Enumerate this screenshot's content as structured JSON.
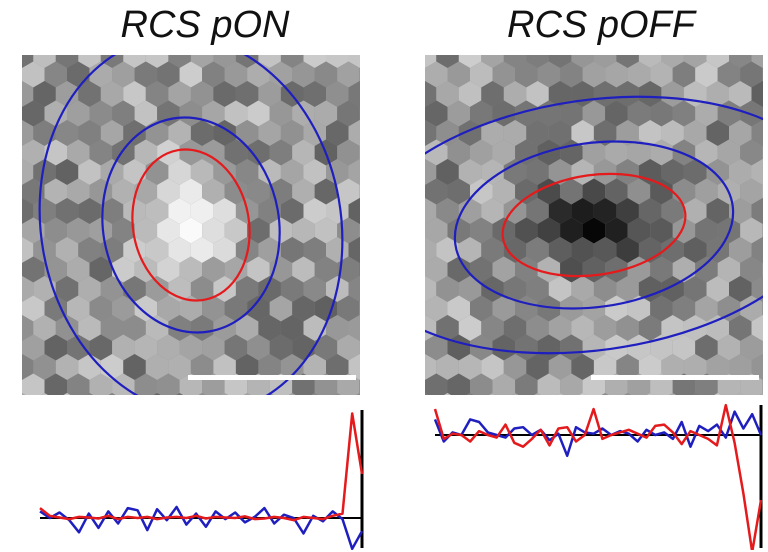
{
  "panels": [
    {
      "title": "RCS pON",
      "center_polarity": "on",
      "red_ellipse": {
        "rx": 58,
        "ry": 76,
        "rot": -10
      },
      "blue_inner": {
        "rx": 88,
        "ry": 108,
        "rot": -10
      },
      "blue_outer": {
        "rx": 150,
        "ry": 190,
        "rot": -10
      }
    },
    {
      "title": "RCS pOFF",
      "center_polarity": "off",
      "red_ellipse": {
        "rx": 92,
        "ry": 50,
        "rot": -8
      },
      "blue_inner": {
        "rx": 140,
        "ry": 82,
        "rot": -8
      },
      "blue_outer": {
        "rx": 240,
        "ry": 125,
        "rot": -8
      }
    }
  ],
  "colors": {
    "center": "#e41a1c",
    "surround": "#1f1fbf",
    "scale_bar": "#ffffff",
    "baseline": "#000000"
  },
  "traces": {
    "left": {
      "red": [
        0.9,
        0.2,
        0.05,
        -0.1,
        0.1,
        0.05,
        -0.05,
        0.2,
        -0.1,
        0.1,
        0.0,
        0.1,
        -0.1,
        0.05,
        0.1,
        0.0,
        0.2,
        -0.05,
        0.1,
        0.05,
        0.0,
        0.15,
        -0.1,
        -0.05,
        0.1,
        0.0,
        -0.2,
        0.1,
        0.0,
        -0.1,
        0.2,
        0.4,
        9.5,
        4.0
      ],
      "blue": [
        0.6,
        0.0,
        0.5,
        -0.2,
        -1.3,
        0.4,
        -0.9,
        0.6,
        -0.5,
        0.9,
        0.7,
        -1.1,
        0.8,
        -0.2,
        1.0,
        -0.6,
        0.4,
        -0.8,
        0.6,
        -0.1,
        0.5,
        -0.4,
        0.1,
        0.9,
        -0.5,
        0.3,
        0.0,
        -1.4,
        0.2,
        -0.3,
        0.6,
        -0.1,
        -2.8,
        -1.2
      ]
    },
    "right": {
      "red": [
        2.0,
        -0.3,
        0.1,
        0.0,
        -0.5,
        0.3,
        0.0,
        -0.2,
        0.8,
        -0.6,
        -0.9,
        -0.3,
        0.4,
        -0.8,
        0.5,
        0.6,
        -0.5,
        0.0,
        2.0,
        -0.3,
        0.0,
        0.2,
        0.4,
        0.1,
        -0.2,
        0.7,
        0.8,
        0.2,
        -0.7,
        0.3,
        0.0,
        -0.3,
        -0.8,
        2.3,
        -0.6,
        -4.5,
        -9.0,
        -5.0
      ],
      "blue": [
        1.2,
        -0.5,
        0.2,
        0.0,
        1.2,
        1.0,
        0.2,
        0.0,
        -0.2,
        0.5,
        0.6,
        0.0,
        0.4,
        -0.4,
        0.1,
        -1.6,
        0.6,
        0.2,
        0.1,
        0.5,
        0.0,
        0.3,
        0.1,
        -0.5,
        0.4,
        0.0,
        0.2,
        -0.3,
        1.0,
        -0.9,
        0.7,
        0.3,
        0.8,
        -0.2,
        1.8,
        0.5,
        1.6,
        0.0
      ]
    }
  }
}
